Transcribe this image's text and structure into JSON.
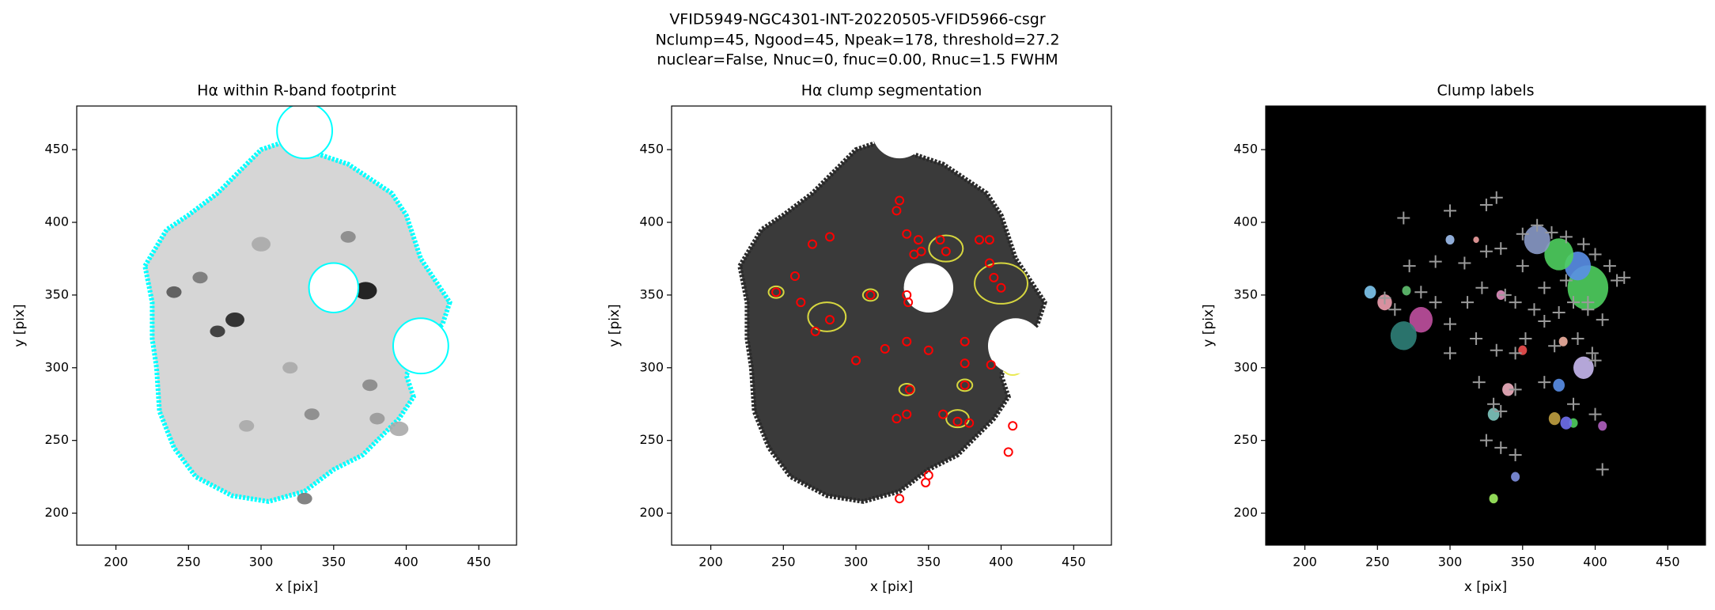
{
  "suptitle": [
    "VFID5949-NGC4301-INT-20220505-VFID5966-csgr",
    "Nclump=45, Ngood=45, Npeak=178, threshold=27.2",
    "nuclear=False, Nnuc=0, fnuc=0.00, Rnuc=1.5 FWHM"
  ],
  "chart_data": [
    {
      "type": "image",
      "title": "Hα within R-band footprint",
      "xlabel": "x [pix]",
      "ylabel": "y [pix]",
      "xlim": [
        173,
        476
      ],
      "ylim": [
        178,
        480
      ],
      "xticks": [
        200,
        250,
        300,
        350,
        400,
        450
      ],
      "yticks": [
        200,
        250,
        300,
        350,
        400,
        450
      ],
      "background": "#ffffff",
      "fill": "#d6d6d6",
      "edge": "#00ffff"
    },
    {
      "type": "image",
      "title": "Hα clump segmentation",
      "xlabel": "x [pix]",
      "ylabel": "y [pix]",
      "xlim": [
        173,
        476
      ],
      "ylim": [
        178,
        480
      ],
      "xticks": [
        200,
        250,
        300,
        350,
        400,
        450
      ],
      "yticks": [
        200,
        250,
        300,
        350,
        400,
        450
      ],
      "background": "#ffffff",
      "fill": "#3a3a3a",
      "edge": "#2a2a2a",
      "points": {
        "marker": "circle",
        "color": "#ff0000",
        "x": [
          330,
          328,
          335,
          343,
          358,
          362,
          385,
          392,
          392,
          395,
          400,
          282,
          270,
          258,
          245,
          262,
          310,
          335,
          336,
          272,
          282,
          300,
          320,
          335,
          350,
          375,
          375,
          393,
          375,
          337,
          335,
          328,
          360,
          370,
          378,
          408,
          405,
          350,
          348,
          330,
          340,
          345
        ],
        "y": [
          415,
          408,
          392,
          388,
          388,
          380,
          388,
          388,
          372,
          362,
          355,
          390,
          385,
          363,
          352,
          345,
          350,
          350,
          345,
          325,
          333,
          305,
          313,
          318,
          312,
          318,
          303,
          302,
          288,
          285,
          268,
          265,
          268,
          263,
          262,
          260,
          242,
          226,
          221,
          210,
          378,
          380
        ]
      }
    },
    {
      "type": "image",
      "title": "Clump labels",
      "xlabel": "x [pix]",
      "ylabel": "y [pix]",
      "xlim": [
        173,
        476
      ],
      "ylim": [
        178,
        480
      ],
      "xticks": [
        200,
        250,
        300,
        350,
        400,
        450
      ],
      "yticks": [
        200,
        250,
        300,
        350,
        400,
        450
      ],
      "background": "#000000",
      "points": {
        "marker": "cross",
        "color": "#9a9a9a",
        "x": [
          268,
          300,
          325,
          332,
          350,
          360,
          370,
          380,
          392,
          400,
          410,
          415,
          420,
          255,
          262,
          280,
          290,
          300,
          312,
          322,
          338,
          345,
          358,
          365,
          375,
          385,
          395,
          405,
          300,
          318,
          332,
          345,
          352,
          372,
          388,
          398,
          272,
          290,
          310,
          325,
          335,
          350,
          365,
          380,
          395,
          400,
          320,
          330,
          335,
          345,
          365,
          385,
          400,
          325,
          335,
          345,
          405
        ],
        "y": [
          403,
          408,
          412,
          417,
          392,
          398,
          393,
          390,
          385,
          378,
          370,
          360,
          362,
          348,
          340,
          352,
          345,
          330,
          345,
          355,
          350,
          345,
          340,
          332,
          338,
          345,
          340,
          333,
          310,
          320,
          312,
          310,
          320,
          315,
          320,
          310,
          370,
          373,
          372,
          380,
          382,
          370,
          355,
          360,
          345,
          305,
          290,
          275,
          270,
          285,
          290,
          275,
          268,
          250,
          245,
          240,
          230
        ]
      }
    }
  ]
}
